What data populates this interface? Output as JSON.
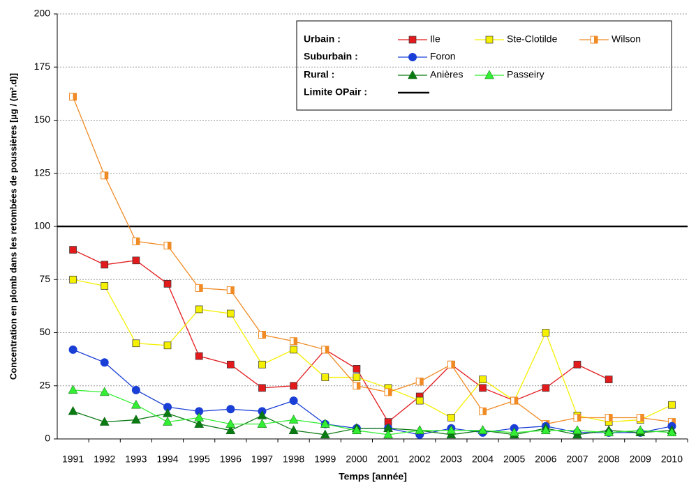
{
  "chart_data": {
    "type": "line",
    "x_label": "Temps [année]",
    "y_label": "Concentration en plomb dans les retombées de poussières [µg / (m².d)]",
    "categories": [
      "1991",
      "1992",
      "1993",
      "1994",
      "1995",
      "1996",
      "1997",
      "1998",
      "1999",
      "2000",
      "2001",
      "2002",
      "2003",
      "2004",
      "2005",
      "2006",
      "2007",
      "2008",
      "2009",
      "2010"
    ],
    "ylim": [
      0,
      200
    ],
    "yticks": [
      0,
      25,
      50,
      75,
      100,
      125,
      150,
      175,
      200
    ],
    "grid": true,
    "groups": [
      {
        "label": "Urbain :",
        "series": [
          {
            "name": "Ile",
            "color": "#e31a1c",
            "marker": "square",
            "values": [
              89,
              82,
              84,
              73,
              39,
              35,
              24,
              25,
              42,
              33,
              8,
              20,
              35,
              24,
              18,
              24,
              35,
              28,
              null,
              null
            ]
          },
          {
            "name": "Ste-Clotilde",
            "color": "#f5f000",
            "marker": "square",
            "values": [
              75,
              72,
              45,
              44,
              61,
              59,
              35,
              42,
              29,
              29,
              24,
              18,
              10,
              28,
              18,
              50,
              11,
              8,
              9,
              16
            ]
          },
          {
            "name": "Wilson",
            "color": "#f08a24",
            "marker": "half-square",
            "values": [
              161,
              124,
              93,
              91,
              71,
              70,
              49,
              46,
              42,
              25,
              22,
              27,
              35,
              13,
              18,
              7,
              10,
              10,
              10,
              8
            ]
          }
        ]
      },
      {
        "label": "Suburbain :",
        "series": [
          {
            "name": "Foron",
            "color": "#1a3fd6",
            "marker": "circle",
            "values": [
              42,
              36,
              23,
              15,
              13,
              14,
              13,
              18,
              7,
              5,
              5,
              2,
              5,
              3,
              5,
              6,
              3,
              3,
              3,
              6
            ]
          }
        ]
      },
      {
        "label": "Rural :",
        "series": [
          {
            "name": "Anières",
            "color": "#0a7a12",
            "marker": "triangle",
            "values": [
              13,
              8,
              9,
              12,
              7,
              4,
              11,
              4,
              2,
              5,
              5,
              4,
              2,
              4,
              2,
              5,
              2,
              4,
              3,
              4
            ]
          },
          {
            "name": "Passeiry",
            "color": "#33ee33",
            "marker": "triangle",
            "values": [
              23,
              22,
              16,
              8,
              10,
              7,
              7,
              9,
              7,
              4,
              2,
              4,
              4,
              4,
              3,
              4,
              4,
              3,
              4,
              3
            ]
          }
        ]
      }
    ],
    "limit": {
      "name": "Limite OPair :",
      "value": 100,
      "color": "#000000"
    }
  }
}
